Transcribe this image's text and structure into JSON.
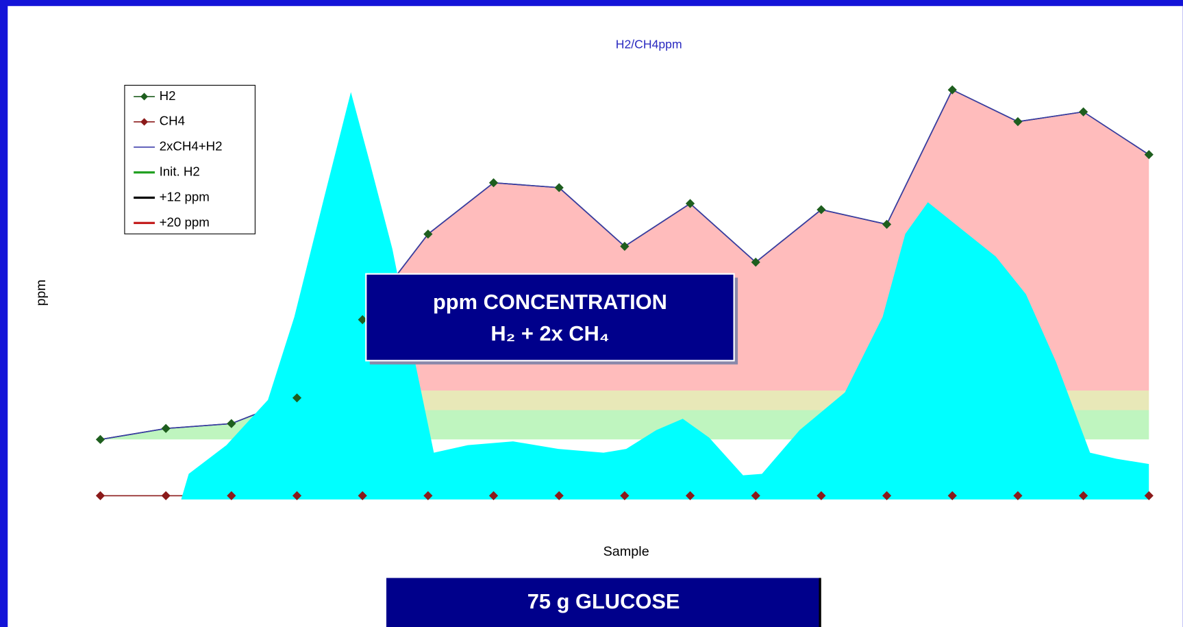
{
  "chart_data": {
    "type": "line",
    "title": "H2/CH4ppm",
    "xlabel": "Sample",
    "ylabel": "ppm",
    "x": [
      0,
      1,
      2,
      3,
      4,
      5,
      6,
      7,
      8,
      9,
      10,
      11,
      12,
      13,
      14,
      15,
      16
    ],
    "xlim": [
      -0.09,
      16.08
    ],
    "xticks": [
      0,
      1,
      2,
      3,
      4,
      5,
      6,
      7,
      8,
      9,
      10,
      11,
      12,
      13,
      14,
      15,
      16
    ],
    "ylim": [
      -3.4,
      168.8
    ],
    "yticks": [
      0,
      20,
      40,
      60,
      80,
      100,
      120,
      140,
      160
    ],
    "grid": true,
    "legend": "upper left",
    "series": [
      {
        "name": "H2",
        "color": "#1e5e1e",
        "marker": "diamond",
        "values": [
          23,
          27.5,
          29.5,
          40,
          72,
          107,
          128,
          126,
          102,
          119.5,
          95.5,
          117,
          111,
          166,
          153,
          157,
          139.5
        ]
      },
      {
        "name": "CH4",
        "color": "#8b1a1a",
        "marker": "diamond",
        "values": [
          0,
          0,
          0,
          0,
          0,
          0,
          0,
          0,
          0,
          0,
          0,
          0,
          0,
          0,
          0,
          0,
          0
        ]
      },
      {
        "name": "2xCH4+H2",
        "color": "#3a3aa8",
        "values": [
          23,
          27.5,
          29.5,
          40,
          72,
          107,
          128,
          126,
          102,
          119.5,
          95.5,
          117,
          111,
          166,
          153,
          157,
          139.5
        ]
      },
      {
        "name": "Init. H2",
        "color": "#22a022",
        "value": 23
      },
      {
        "name": "+12 ppm",
        "color": "#000000",
        "value": 35
      },
      {
        "name": "+20 ppm",
        "color": "#c42020",
        "value": 43
      }
    ],
    "annotations": [
      "ppm CONCENTRATION",
      "H₂ + 2x CH₄"
    ],
    "note": "75 g GLUCOSE"
  }
}
